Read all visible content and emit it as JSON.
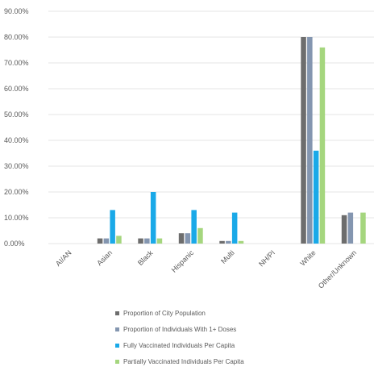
{
  "chart_data": {
    "type": "bar",
    "categories": [
      "AI/AN",
      "Asian",
      "Black",
      "Hispanic",
      "Multi",
      "NH/PI",
      "White",
      "Other/Unknown"
    ],
    "y_ticks": [
      "90.00%",
      "80.00%",
      "70.00%",
      "60.00%",
      "50.00%",
      "40.00%",
      "30.00%",
      "20.00%",
      "10.00%",
      "0.00%"
    ],
    "ylim": [
      0,
      90
    ],
    "grid": true,
    "legend_position": "bottom",
    "series": [
      {
        "name": "Proportion of City Population",
        "color": "#6d6d6d",
        "values": [
          0,
          2,
          2,
          4,
          1,
          0,
          80,
          11
        ]
      },
      {
        "name": "Proportion of Individuals With 1+ Doses",
        "color": "#8496b0",
        "values": [
          0,
          2,
          2,
          4,
          1,
          0,
          80,
          12
        ]
      },
      {
        "name": "Fully Vaccinated Individuals Per Capita",
        "color": "#1aa9e8",
        "values": [
          0,
          13,
          20,
          13,
          12,
          0,
          36,
          0
        ]
      },
      {
        "name": "Partially Vaccinated Individuals Per Capita",
        "color": "#a5d67e",
        "values": [
          0,
          3,
          2,
          6,
          1,
          0,
          76,
          12
        ]
      }
    ]
  }
}
